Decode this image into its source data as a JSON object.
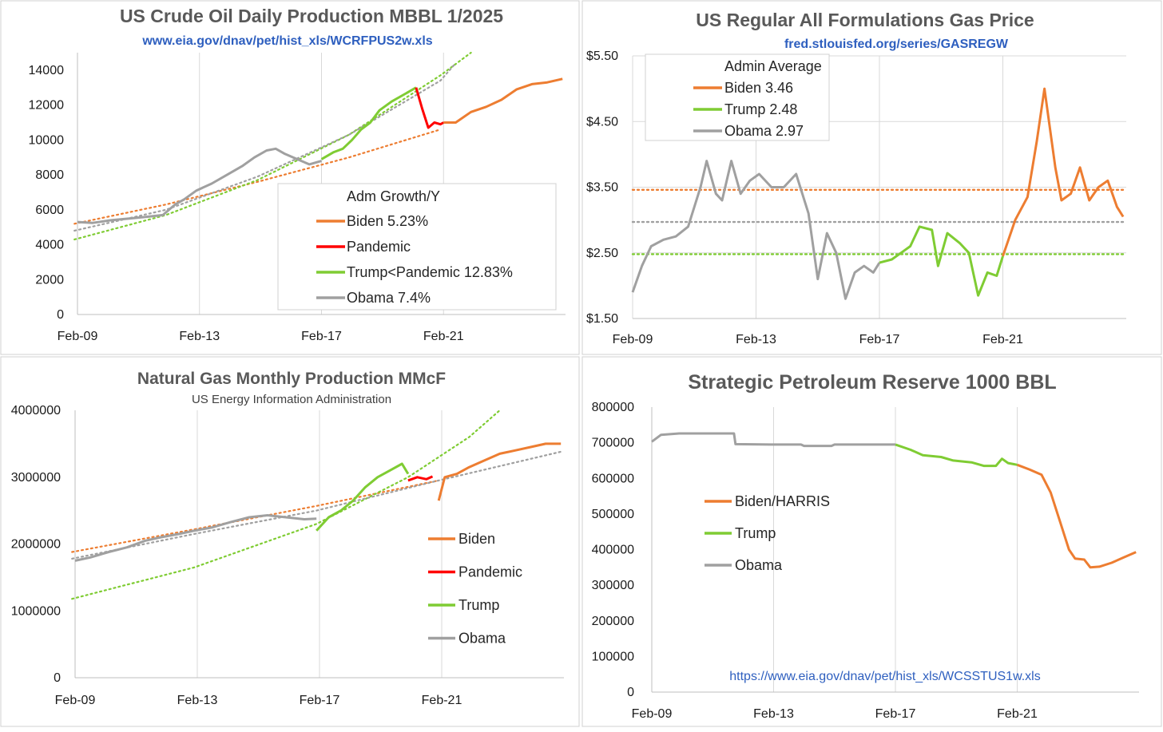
{
  "colors": {
    "biden": "#ed7d31",
    "pandemic": "#ff0000",
    "trump": "#7fcc33",
    "obama": "#a0a0a0",
    "title": "#595959",
    "source": "#2e5fbf",
    "grid": "#d9d9d9"
  },
  "chart_data": [
    {
      "type": "line",
      "title": "US Crude Oil Daily Production MBBL 1/2025",
      "subtitle": "www.eia.gov/dnav/pet/hist_xls/WCRFPUS2w.xls",
      "x_ticks": [
        "Feb-09",
        "Feb-13",
        "Feb-17",
        "Feb-21"
      ],
      "y_ticks": [
        "0",
        "2000",
        "4000",
        "6000",
        "8000",
        "10000",
        "12000",
        "14000"
      ],
      "ylim": [
        0,
        15000
      ],
      "legend_title": "Adm  Growth/Y",
      "legend": [
        "Biden 5.23%",
        "Pandemic",
        "Trump<Pandemic 12.83%",
        "Obama 7.4%"
      ],
      "series": [
        {
          "name": "Obama",
          "color_key": "obama",
          "points": [
            [
              2009.1,
              5300
            ],
            [
              2009.6,
              5250
            ],
            [
              2010.2,
              5400
            ],
            [
              2010.8,
              5500
            ],
            [
              2011.4,
              5600
            ],
            [
              2011.9,
              5700
            ],
            [
              2012.3,
              6300
            ],
            [
              2012.6,
              6600
            ],
            [
              2013.0,
              7100
            ],
            [
              2013.5,
              7500
            ],
            [
              2014.0,
              8000
            ],
            [
              2014.5,
              8500
            ],
            [
              2014.9,
              9000
            ],
            [
              2015.3,
              9400
            ],
            [
              2015.6,
              9500
            ],
            [
              2015.9,
              9200
            ],
            [
              2016.3,
              8900
            ],
            [
              2016.7,
              8600
            ],
            [
              2017.1,
              8800
            ]
          ]
        },
        {
          "name": "Trump",
          "color_key": "trump",
          "points": [
            [
              2017.1,
              8900
            ],
            [
              2017.5,
              9300
            ],
            [
              2017.8,
              9500
            ],
            [
              2018.1,
              10000
            ],
            [
              2018.4,
              10600
            ],
            [
              2018.7,
              11000
            ],
            [
              2019.0,
              11700
            ],
            [
              2019.4,
              12200
            ],
            [
              2019.8,
              12600
            ],
            [
              2020.2,
              13000
            ]
          ]
        },
        {
          "name": "Pandemic",
          "color_key": "pandemic",
          "points": [
            [
              2020.2,
              13000
            ],
            [
              2020.4,
              11800
            ],
            [
              2020.6,
              10700
            ],
            [
              2020.8,
              11000
            ],
            [
              2021.0,
              10900
            ],
            [
              2021.1,
              11000
            ]
          ]
        },
        {
          "name": "Biden",
          "color_key": "biden",
          "points": [
            [
              2021.1,
              11000
            ],
            [
              2021.5,
              11000
            ],
            [
              2022.0,
              11600
            ],
            [
              2022.5,
              11900
            ],
            [
              2023.0,
              12300
            ],
            [
              2023.5,
              12900
            ],
            [
              2024.0,
              13200
            ],
            [
              2024.5,
              13300
            ],
            [
              2025.0,
              13500
            ]
          ]
        }
      ],
      "trendlines": [
        {
          "name": "Biden trend",
          "color_key": "biden",
          "points": [
            [
              2009.0,
              5200
            ],
            [
              2012.0,
              6300
            ],
            [
              2015.0,
              7600
            ],
            [
              2018.0,
              9000
            ],
            [
              2021.0,
              10600
            ]
          ]
        },
        {
          "name": "Trump trend",
          "color_key": "trump",
          "points": [
            [
              2009.0,
              4300
            ],
            [
              2012.0,
              5700
            ],
            [
              2015.0,
              7700
            ],
            [
              2018.0,
              10300
            ],
            [
              2021.0,
              13700
            ],
            [
              2022.0,
              15000
            ]
          ]
        },
        {
          "name": "Obama trend",
          "color_key": "obama",
          "points": [
            [
              2009.0,
              4800
            ],
            [
              2012.0,
              6000
            ],
            [
              2015.0,
              7900
            ],
            [
              2018.0,
              10300
            ],
            [
              2021.0,
              13400
            ],
            [
              2021.5,
              14400
            ]
          ]
        }
      ]
    },
    {
      "type": "line",
      "title": "US Regular All Formulations Gas Price",
      "subtitle": "fred.stlouisfed.org/series/GASREGW",
      "x_ticks": [
        "Feb-09",
        "Feb-13",
        "Feb-17",
        "Feb-21"
      ],
      "y_ticks": [
        "$1.50",
        "$2.50",
        "$3.50",
        "$4.50",
        "$5.50"
      ],
      "ylim": [
        1.5,
        5.5
      ],
      "legend_title": "Admin Average",
      "legend": [
        "Biden 3.46",
        "Trump 2.48",
        "Obama 2.97"
      ],
      "averages": [
        {
          "color_key": "biden",
          "value": 3.46
        },
        {
          "color_key": "obama",
          "value": 2.97
        },
        {
          "color_key": "trump",
          "value": 2.48
        }
      ],
      "series": [
        {
          "name": "Obama",
          "color_key": "obama",
          "points": [
            [
              2009.1,
              1.9
            ],
            [
              2009.4,
              2.3
            ],
            [
              2009.7,
              2.6
            ],
            [
              2010.1,
              2.7
            ],
            [
              2010.5,
              2.75
            ],
            [
              2010.9,
              2.9
            ],
            [
              2011.3,
              3.5
            ],
            [
              2011.5,
              3.9
            ],
            [
              2011.8,
              3.4
            ],
            [
              2012.0,
              3.3
            ],
            [
              2012.3,
              3.9
            ],
            [
              2012.6,
              3.4
            ],
            [
              2012.9,
              3.6
            ],
            [
              2013.2,
              3.7
            ],
            [
              2013.6,
              3.5
            ],
            [
              2014.0,
              3.5
            ],
            [
              2014.4,
              3.7
            ],
            [
              2014.8,
              3.1
            ],
            [
              2015.1,
              2.1
            ],
            [
              2015.4,
              2.8
            ],
            [
              2015.7,
              2.5
            ],
            [
              2016.0,
              1.8
            ],
            [
              2016.3,
              2.2
            ],
            [
              2016.6,
              2.3
            ],
            [
              2016.9,
              2.2
            ],
            [
              2017.1,
              2.35
            ]
          ]
        },
        {
          "name": "Trump",
          "color_key": "trump",
          "points": [
            [
              2017.1,
              2.35
            ],
            [
              2017.5,
              2.4
            ],
            [
              2017.8,
              2.5
            ],
            [
              2018.1,
              2.6
            ],
            [
              2018.4,
              2.9
            ],
            [
              2018.8,
              2.85
            ],
            [
              2019.0,
              2.3
            ],
            [
              2019.3,
              2.8
            ],
            [
              2019.7,
              2.65
            ],
            [
              2020.0,
              2.5
            ],
            [
              2020.3,
              1.85
            ],
            [
              2020.6,
              2.2
            ],
            [
              2020.9,
              2.15
            ],
            [
              2021.1,
              2.45
            ]
          ]
        },
        {
          "name": "Biden",
          "color_key": "biden",
          "points": [
            [
              2021.1,
              2.45
            ],
            [
              2021.5,
              3.0
            ],
            [
              2021.9,
              3.35
            ],
            [
              2022.2,
              4.2
            ],
            [
              2022.45,
              5.0
            ],
            [
              2022.8,
              3.8
            ],
            [
              2023.0,
              3.3
            ],
            [
              2023.3,
              3.4
            ],
            [
              2023.6,
              3.8
            ],
            [
              2023.9,
              3.3
            ],
            [
              2024.2,
              3.5
            ],
            [
              2024.5,
              3.6
            ],
            [
              2024.8,
              3.2
            ],
            [
              2025.0,
              3.05
            ]
          ]
        }
      ]
    },
    {
      "type": "line",
      "title": "Natural Gas Monthly Production MMcF",
      "subtitle": "US Energy Information Administration",
      "x_ticks": [
        "Feb-09",
        "Feb-13",
        "Feb-17",
        "Feb-21"
      ],
      "y_ticks": [
        "0",
        "1000000",
        "2000000",
        "3000000",
        "4000000"
      ],
      "ylim": [
        0,
        4000000
      ],
      "legend": [
        "Biden",
        "Pandemic",
        "Trump",
        "Obama"
      ],
      "series": [
        {
          "name": "Obama",
          "color_key": "obama",
          "points": [
            [
              2009.1,
              1750000
            ],
            [
              2009.6,
              1800000
            ],
            [
              2010.2,
              1880000
            ],
            [
              2010.8,
              1950000
            ],
            [
              2011.4,
              2050000
            ],
            [
              2011.9,
              2100000
            ],
            [
              2012.5,
              2150000
            ],
            [
              2013.0,
              2200000
            ],
            [
              2013.6,
              2250000
            ],
            [
              2014.2,
              2330000
            ],
            [
              2014.8,
              2400000
            ],
            [
              2015.4,
              2430000
            ],
            [
              2016.0,
              2400000
            ],
            [
              2016.6,
              2370000
            ],
            [
              2017.0,
              2380000
            ]
          ]
        },
        {
          "name": "Trump",
          "color_key": "trump",
          "points": [
            [
              2017.0,
              2200000
            ],
            [
              2017.4,
              2400000
            ],
            [
              2017.8,
              2500000
            ],
            [
              2018.2,
              2650000
            ],
            [
              2018.6,
              2850000
            ],
            [
              2019.0,
              3000000
            ],
            [
              2019.4,
              3100000
            ],
            [
              2019.8,
              3200000
            ],
            [
              2020.0,
              3050000
            ]
          ]
        },
        {
          "name": "Pandemic",
          "color_key": "pandemic",
          "points": [
            [
              2020.0,
              2950000
            ],
            [
              2020.3,
              3000000
            ],
            [
              2020.6,
              2970000
            ],
            [
              2020.8,
              3010000
            ]
          ]
        },
        {
          "name": "Biden",
          "color_key": "biden",
          "points": [
            [
              2021.0,
              2650000
            ],
            [
              2021.2,
              3000000
            ],
            [
              2021.6,
              3050000
            ],
            [
              2022.0,
              3150000
            ],
            [
              2022.5,
              3250000
            ],
            [
              2023.0,
              3350000
            ],
            [
              2023.5,
              3400000
            ],
            [
              2024.0,
              3450000
            ],
            [
              2024.5,
              3500000
            ],
            [
              2025.0,
              3500000
            ]
          ]
        }
      ],
      "trendlines": [
        {
          "name": "Biden trend",
          "color_key": "biden",
          "points": [
            [
              2009.0,
              1880000
            ],
            [
              2013.0,
              2220000
            ],
            [
              2017.0,
              2570000
            ],
            [
              2021.0,
              2950000
            ]
          ]
        },
        {
          "name": "Trump trend",
          "color_key": "trump",
          "points": [
            [
              2009.0,
              1180000
            ],
            [
              2013.0,
              1650000
            ],
            [
              2017.0,
              2300000
            ],
            [
              2020.0,
              3000000
            ],
            [
              2022.0,
              3600000
            ],
            [
              2023.0,
              4000000
            ]
          ]
        },
        {
          "name": "Obama trend",
          "color_key": "obama",
          "points": [
            [
              2009.0,
              1780000
            ],
            [
              2013.0,
              2150000
            ],
            [
              2017.0,
              2500000
            ],
            [
              2021.0,
              2950000
            ],
            [
              2025.0,
              3380000
            ]
          ]
        }
      ]
    },
    {
      "type": "line",
      "title": "Strategic Petroleum Reserve 1000 BBL",
      "subtitle": "https://www.eia.gov/dnav/pet/hist_xls/WCSSTUS1w.xls",
      "x_ticks": [
        "Feb-09",
        "Feb-13",
        "Feb-17",
        "Feb-21"
      ],
      "y_ticks": [
        "0",
        "100000",
        "200000",
        "300000",
        "400000",
        "500000",
        "600000",
        "700000",
        "800000"
      ],
      "ylim": [
        0,
        800000
      ],
      "legend": [
        "Biden/HARRIS",
        "Trump",
        "Obama"
      ],
      "series": [
        {
          "name": "Obama",
          "color_key": "obama",
          "points": [
            [
              2009.1,
              703000
            ],
            [
              2009.4,
              722000
            ],
            [
              2010.0,
              726000
            ],
            [
              2011.0,
              726000
            ],
            [
              2011.8,
              726000
            ],
            [
              2011.85,
              696000
            ],
            [
              2013.0,
              695000
            ],
            [
              2014.0,
              695000
            ],
            [
              2014.1,
              691000
            ],
            [
              2015.0,
              691000
            ],
            [
              2015.1,
              695000
            ],
            [
              2017.1,
              695000
            ]
          ]
        },
        {
          "name": "Trump",
          "color_key": "trump",
          "points": [
            [
              2017.1,
              695000
            ],
            [
              2017.6,
              680000
            ],
            [
              2018.0,
              665000
            ],
            [
              2018.6,
              660000
            ],
            [
              2019.0,
              650000
            ],
            [
              2019.6,
              645000
            ],
            [
              2020.0,
              635000
            ],
            [
              2020.4,
              635000
            ],
            [
              2020.6,
              655000
            ],
            [
              2020.8,
              643000
            ],
            [
              2021.1,
              638000
            ]
          ]
        },
        {
          "name": "Biden/HARRIS",
          "color_key": "biden",
          "points": [
            [
              2021.1,
              638000
            ],
            [
              2021.5,
              625000
            ],
            [
              2021.9,
              610000
            ],
            [
              2022.2,
              560000
            ],
            [
              2022.5,
              480000
            ],
            [
              2022.8,
              400000
            ],
            [
              2023.0,
              375000
            ],
            [
              2023.3,
              372000
            ],
            [
              2023.5,
              350000
            ],
            [
              2023.8,
              352000
            ],
            [
              2024.2,
              363000
            ],
            [
              2024.6,
              378000
            ],
            [
              2025.0,
              393000
            ]
          ]
        }
      ]
    }
  ]
}
